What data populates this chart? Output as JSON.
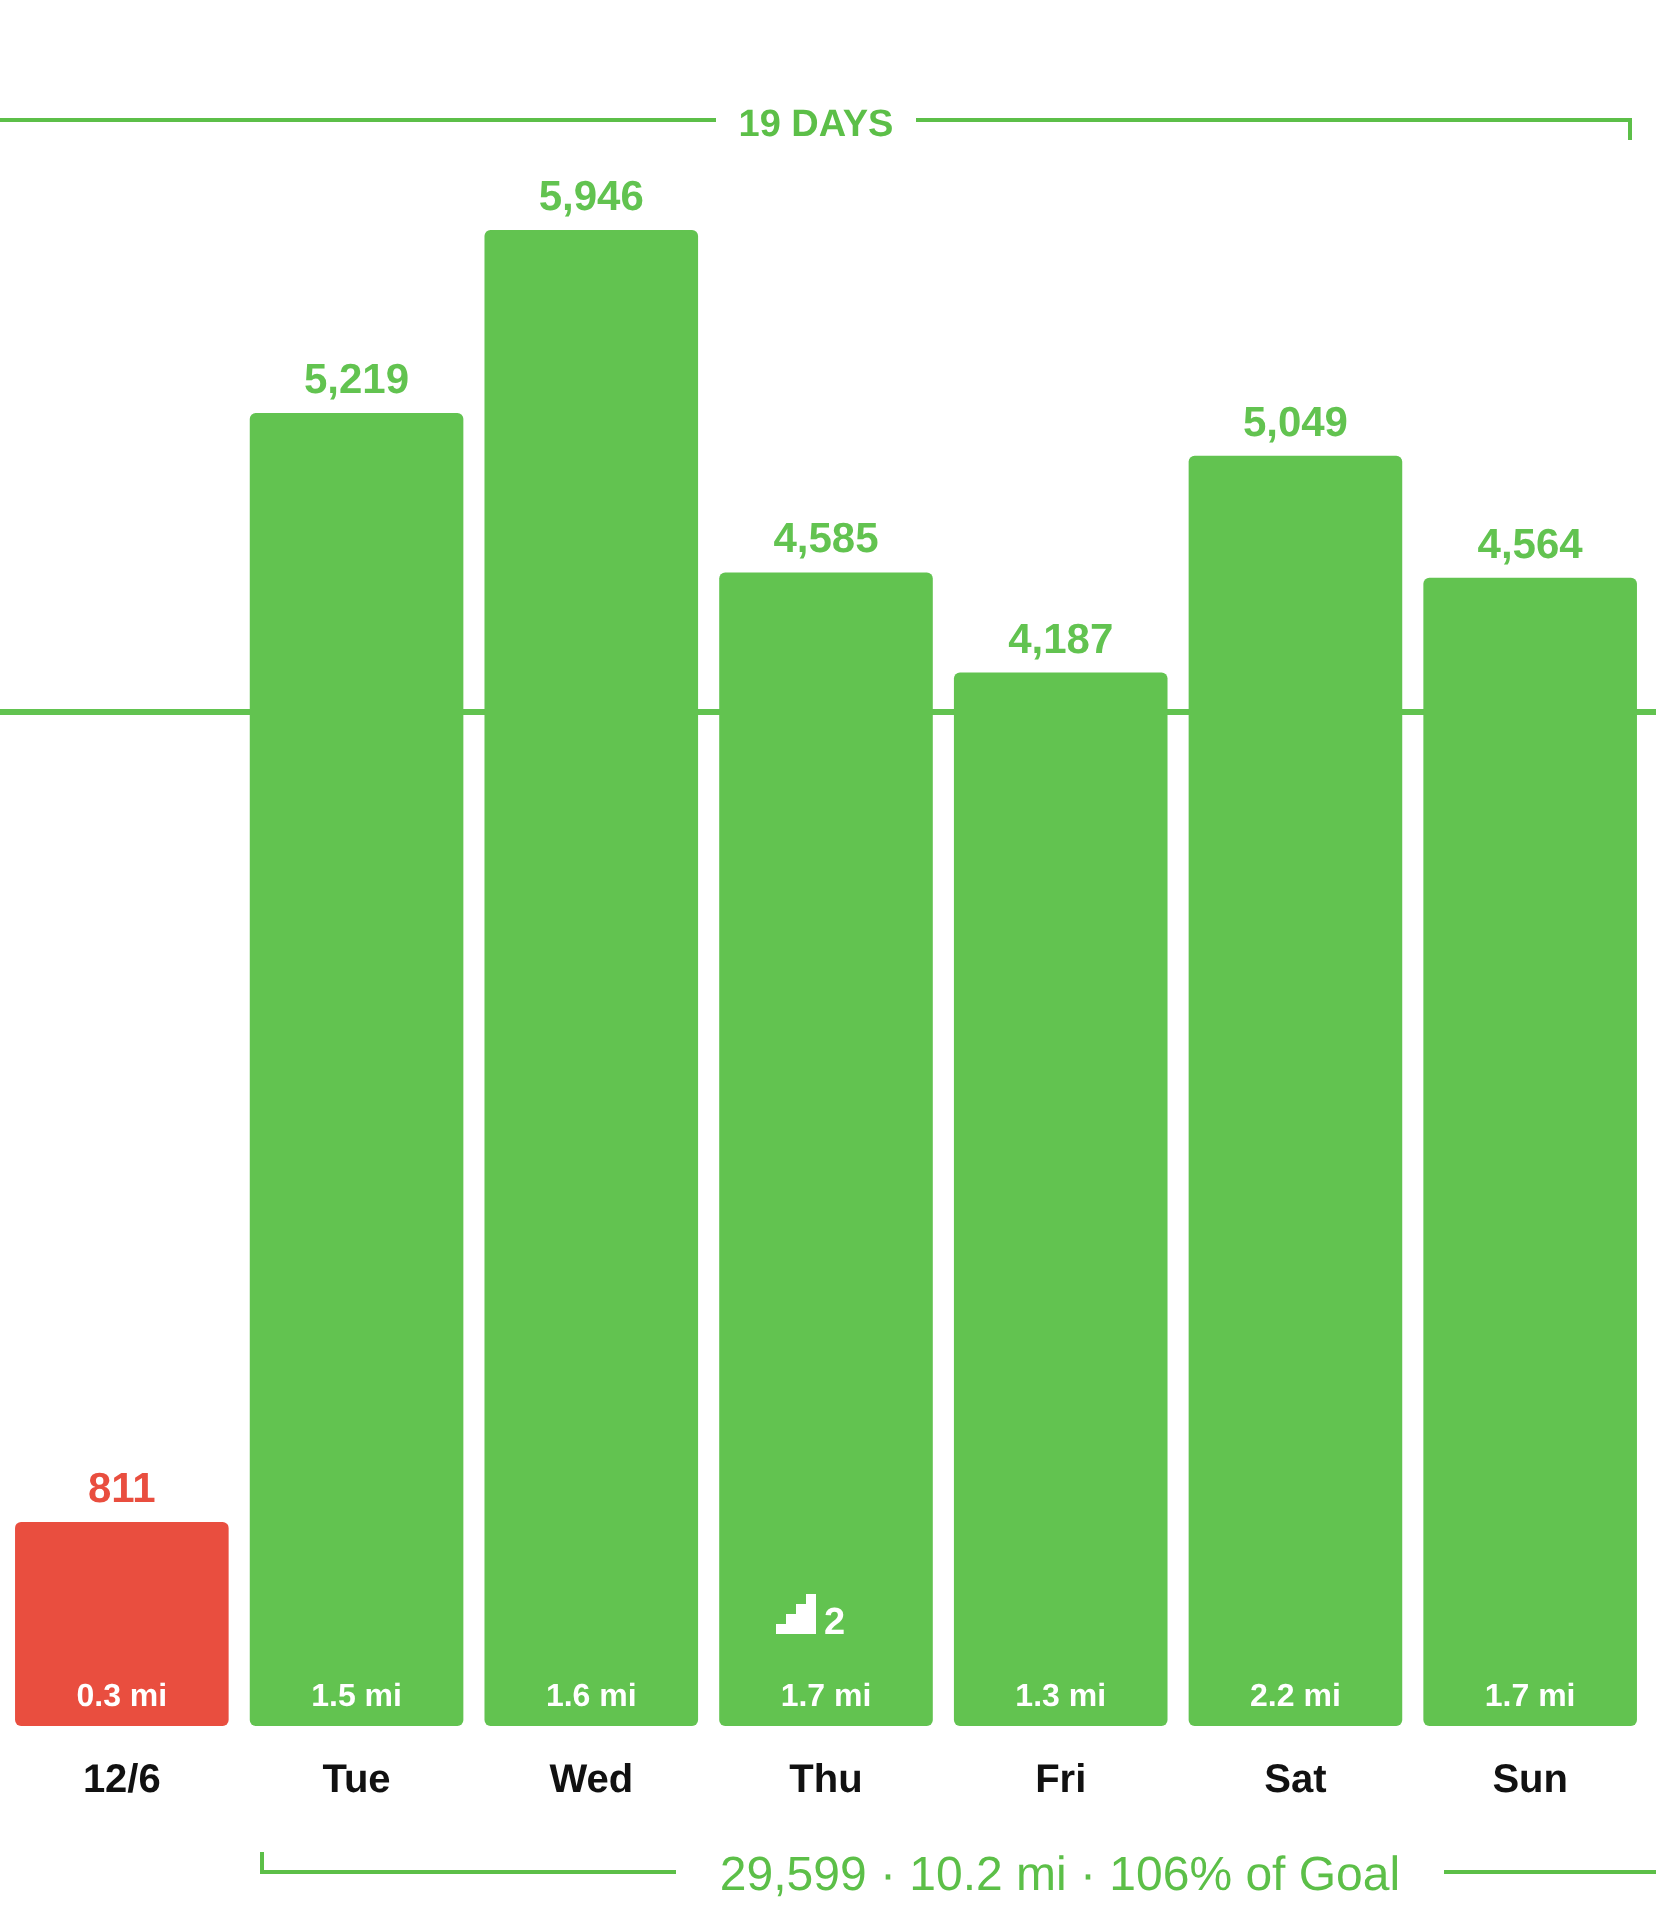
{
  "chart_data": {
    "type": "bar",
    "categories": [
      "12/6",
      "Tue",
      "Wed",
      "Thu",
      "Fri",
      "Sat",
      "Sun"
    ],
    "values": [
      811,
      5219,
      5946,
      4585,
      4187,
      5049,
      4564
    ],
    "value_labels": [
      "811",
      "5,219",
      "5,946",
      "4,585",
      "4,187",
      "5,049",
      "4,564"
    ],
    "colors": [
      "#e94e3f",
      "#62c350",
      "#62c350",
      "#62c350",
      "#62c350",
      "#62c350",
      "#62c350"
    ],
    "ref_lines": [
      {
        "axis": "y",
        "value": 4030,
        "label": null,
        "color": "#62c350"
      }
    ],
    "annotations": [
      "19 DAYS",
      "29,599 · 10.2 mi · 106% of Goal",
      "0.3 mi",
      "1.5 mi",
      "1.6 mi",
      "1.7 mi",
      "1.3 mi",
      "2.2 mi",
      "1.7 mi",
      "2"
    ]
  }
}
